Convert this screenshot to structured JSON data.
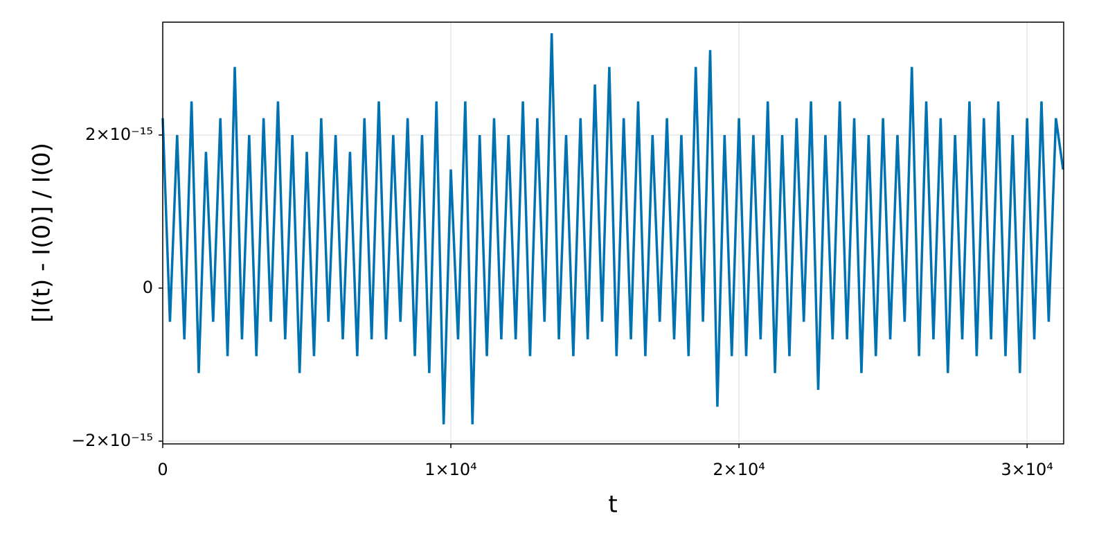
{
  "chart_data": {
    "type": "line",
    "xlabel": "t",
    "ylabel": "[I(t) - I(0)] / I(0)",
    "x": [
      0,
      250,
      500,
      750,
      1000,
      1250,
      1500,
      1750,
      2000,
      2250,
      2500,
      2750,
      3000,
      3250,
      3500,
      3750,
      4000,
      4250,
      4500,
      4750,
      5000,
      5250,
      5500,
      5750,
      6000,
      6250,
      6500,
      6750,
      7000,
      7250,
      7500,
      7750,
      8000,
      8250,
      8500,
      8750,
      9000,
      9250,
      9500,
      9750,
      10000,
      10250,
      10500,
      10750,
      11000,
      11250,
      11500,
      11750,
      12000,
      12250,
      12500,
      12750,
      13000,
      13250,
      13500,
      13750,
      14000,
      14250,
      14500,
      14750,
      15000,
      15250,
      15500,
      15750,
      16000,
      16250,
      16500,
      16750,
      17000,
      17250,
      17500,
      17750,
      18000,
      18250,
      18500,
      18750,
      19000,
      19250,
      19500,
      19750,
      20000,
      20250,
      20500,
      20750,
      21000,
      21250,
      21500,
      21750,
      22000,
      22250,
      22500,
      22750,
      23000,
      23250,
      23500,
      23750,
      24000,
      24250,
      24500,
      24750,
      25000,
      25250,
      25500,
      25750,
      26000,
      26250,
      26500,
      26750,
      27000,
      27250,
      27500,
      27750,
      28000,
      28250,
      28500,
      28750,
      29000,
      29250,
      29500,
      29750,
      30000,
      30250,
      30500,
      30750,
      31000,
      31250
    ],
    "series": [
      {
        "name": "I",
        "color": "#0072b2",
        "values": [
          2.22e-15,
          -4.4e-16,
          2e-15,
          -6.7e-16,
          2.44e-15,
          -1.11e-15,
          1.78e-15,
          -4.4e-16,
          2.22e-15,
          -8.9e-16,
          2.89e-15,
          -6.7e-16,
          2e-15,
          -8.9e-16,
          2.22e-15,
          -4.4e-16,
          2.44e-15,
          -6.7e-16,
          2e-15,
          -1.11e-15,
          1.78e-15,
          -8.9e-16,
          2.22e-15,
          -4.4e-16,
          2e-15,
          -6.7e-16,
          1.78e-15,
          -8.9e-16,
          2.22e-15,
          -6.7e-16,
          2.44e-15,
          -6.7e-16,
          2e-15,
          -4.4e-16,
          2.22e-15,
          -8.9e-16,
          2e-15,
          -1.11e-15,
          2.44e-15,
          -1.78e-15,
          1.55e-15,
          -6.7e-16,
          2.44e-15,
          -1.78e-15,
          2e-15,
          -8.9e-16,
          2.22e-15,
          -6.7e-16,
          2e-15,
          -6.7e-16,
          2.44e-15,
          -8.9e-16,
          2.22e-15,
          -4.4e-16,
          3.33e-15,
          -6.7e-16,
          2e-15,
          -8.9e-16,
          2.22e-15,
          -6.7e-16,
          2.66e-15,
          -4.4e-16,
          2.89e-15,
          -8.9e-16,
          2.22e-15,
          -6.7e-16,
          2.44e-15,
          -8.9e-16,
          2e-15,
          -4.4e-16,
          2.22e-15,
          -6.7e-16,
          2e-15,
          -8.9e-16,
          2.89e-15,
          -4.4e-16,
          3.11e-15,
          -1.55e-15,
          2e-15,
          -8.9e-16,
          2.22e-15,
          -8.9e-16,
          2e-15,
          -6.7e-16,
          2.44e-15,
          -1.11e-15,
          2e-15,
          -8.9e-16,
          2.22e-15,
          -4.4e-16,
          2.44e-15,
          -1.33e-15,
          2e-15,
          -6.7e-16,
          2.44e-15,
          -6.7e-16,
          2.22e-15,
          -1.11e-15,
          2e-15,
          -8.9e-16,
          2.22e-15,
          -6.7e-16,
          2e-15,
          -4.4e-16,
          2.89e-15,
          -8.9e-16,
          2.44e-15,
          -6.7e-16,
          2.22e-15,
          -1.11e-15,
          2e-15,
          -6.7e-16,
          2.44e-15,
          -8.9e-16,
          2.22e-15,
          -6.7e-16,
          2.44e-15,
          -8.9e-16,
          2e-15,
          -1.11e-15,
          2.22e-15,
          -6.7e-16,
          2.44e-15,
          -4.4e-16,
          2.22e-15,
          1.55e-15
        ]
      }
    ],
    "xlim": [
      0,
      31270
    ],
    "ylim": [
      -2.036e-15,
      3.475e-15
    ],
    "xticks": [
      0,
      {
        "value": 10000,
        "label": "1×10⁴"
      },
      {
        "value": 20000,
        "label": "2×10⁴"
      },
      {
        "value": 30000,
        "label": "3×10⁴"
      }
    ],
    "yticks": [
      {
        "value": -2e-15,
        "label": "−2×10⁻¹⁵"
      },
      0,
      {
        "value": 2e-15,
        "label": "2×10⁻¹⁵"
      }
    ],
    "grid": true
  }
}
